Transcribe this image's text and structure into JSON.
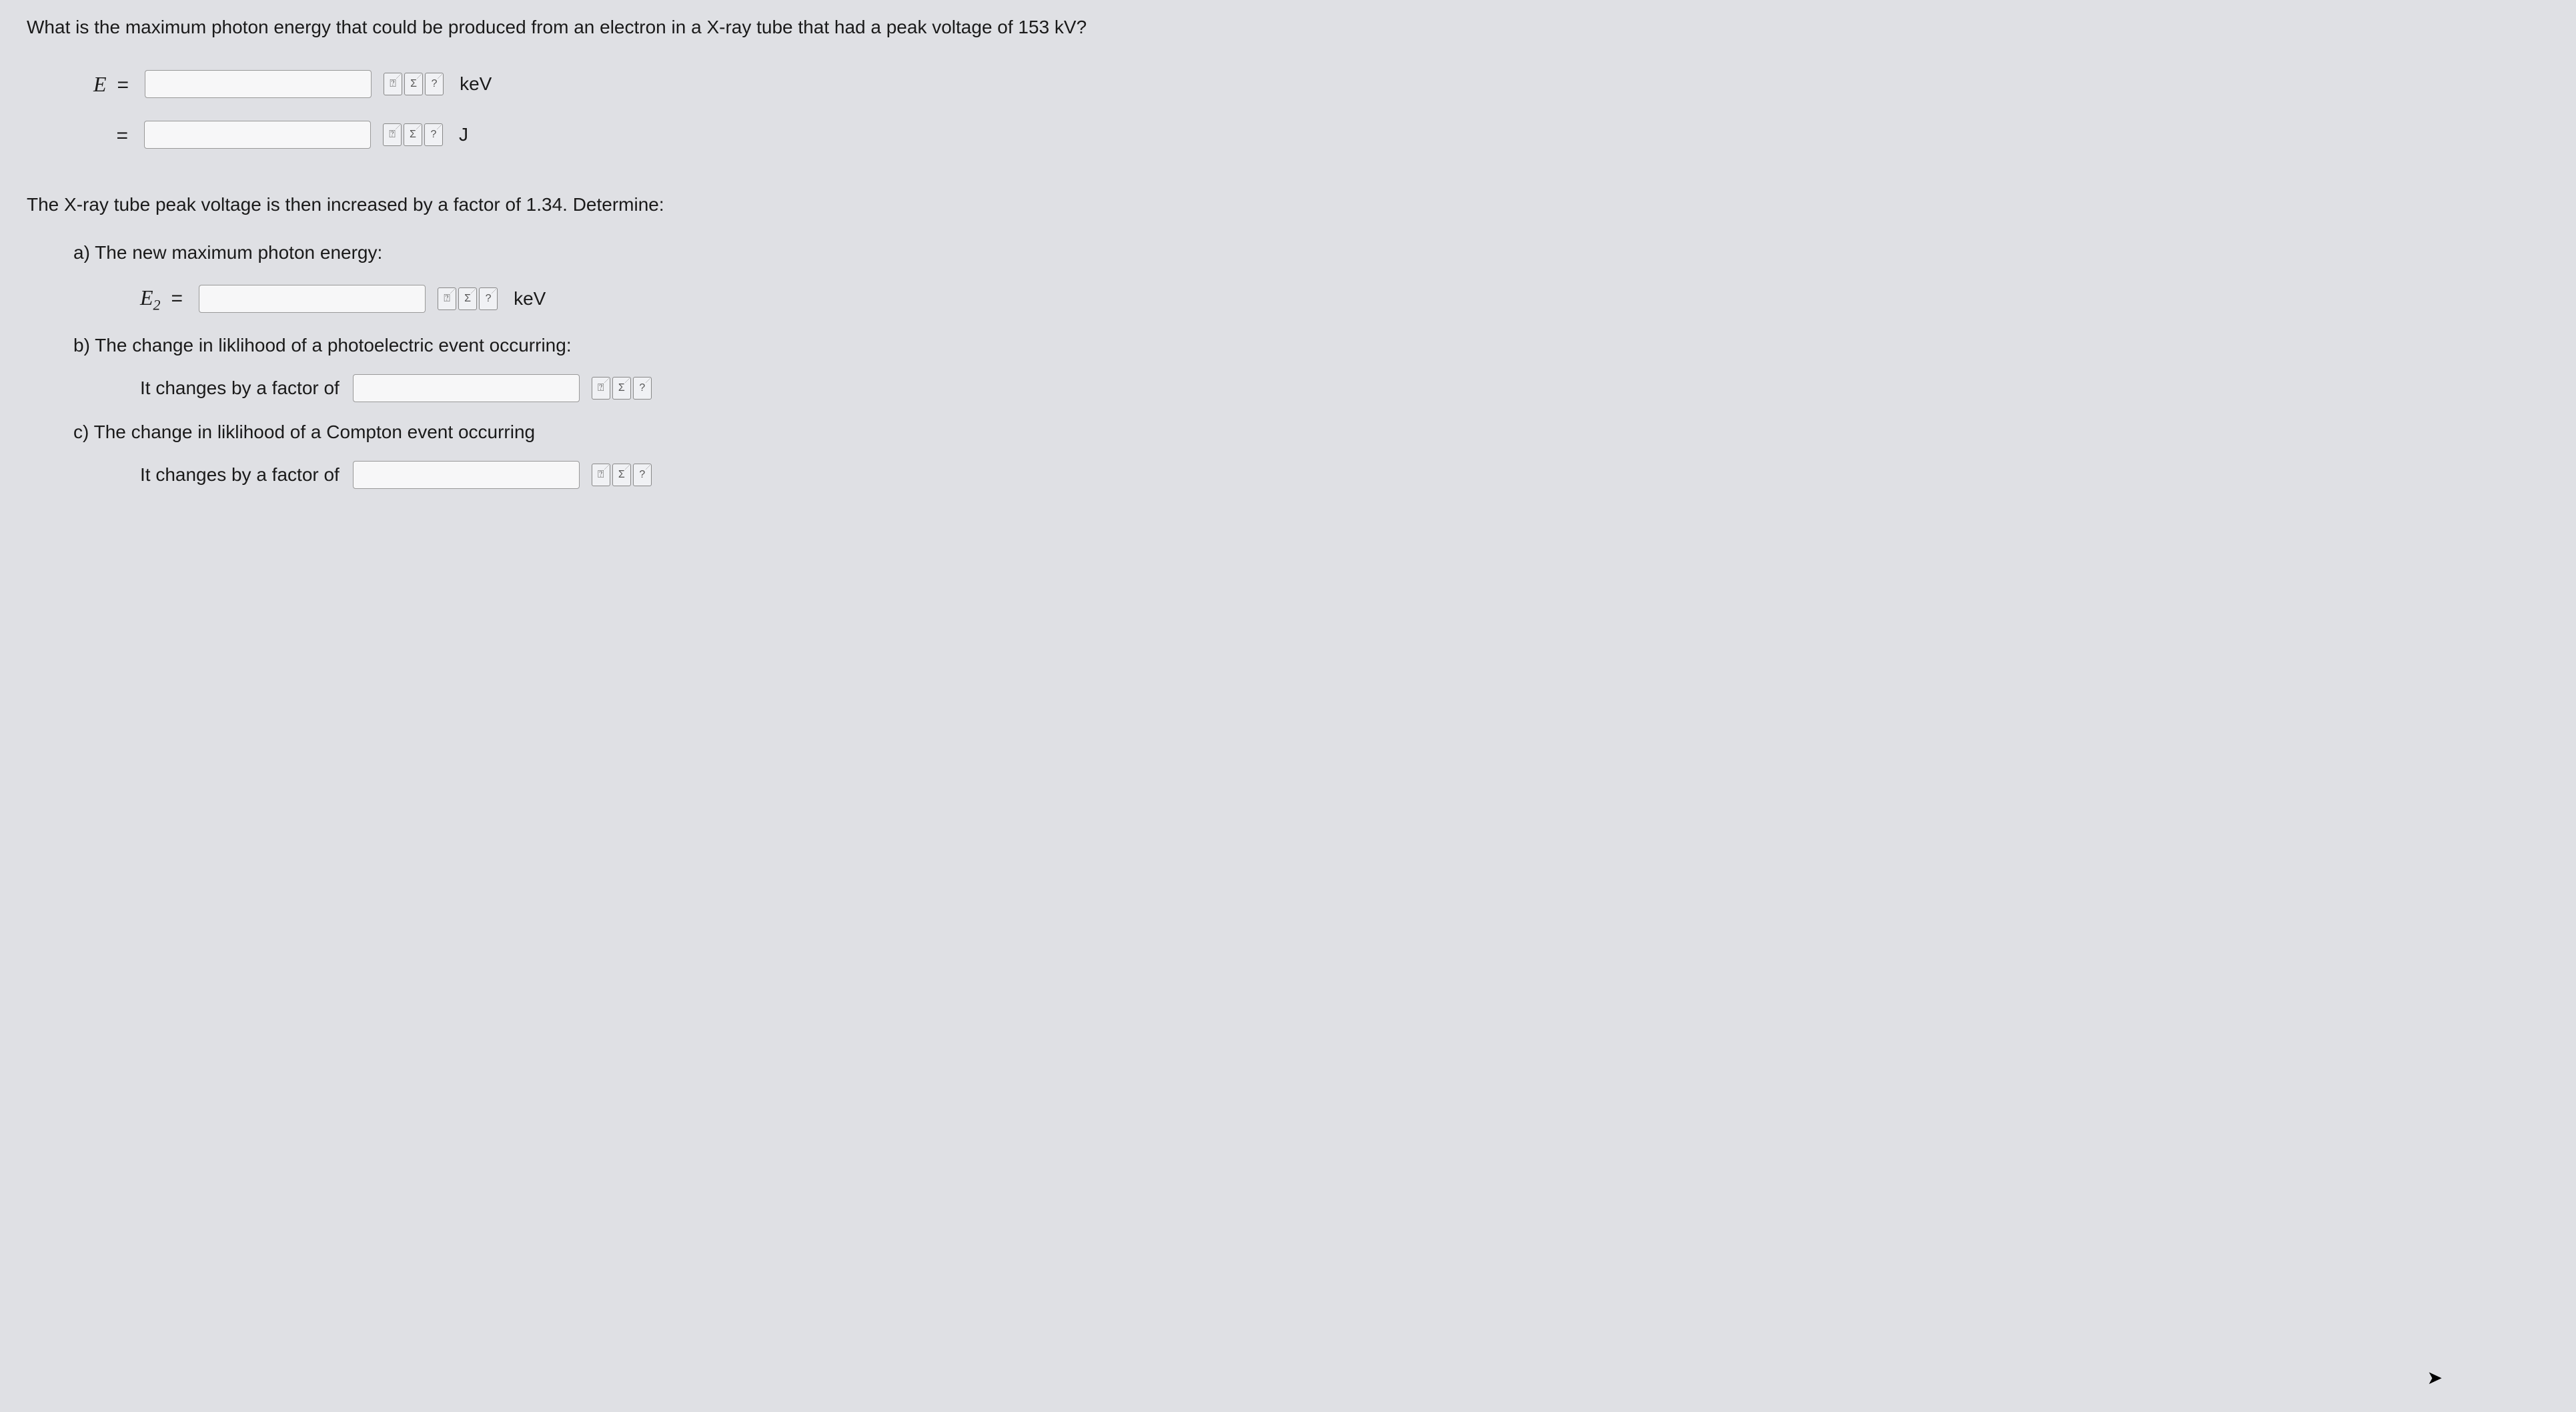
{
  "question": {
    "main_text": "What is the maximum photon energy that could be produced from an electron in a X-ray tube that had a peak voltage of 153 kV?",
    "var_E": "E",
    "equals": "=",
    "unit_keV": "keV",
    "unit_J": "J"
  },
  "part2": {
    "intro": "The X-ray tube peak voltage is then increased by a factor of 1.34. Determine:",
    "a": {
      "label": "a) The new maximum photon energy:",
      "var": "E",
      "sub": "2",
      "unit": "keV"
    },
    "b": {
      "label": "b) The change in liklihood of a photoelectric event occurring:",
      "factor_text": "It changes by a factor of"
    },
    "c": {
      "label": "c) The change in liklihood of a Compton event occurring",
      "factor_text": "It changes by a factor of"
    }
  },
  "icons": {
    "preview": "⍰",
    "sigma": "Σ",
    "help": "?"
  },
  "colors": {
    "background": "#dfe0e4",
    "text": "#1a1a1a",
    "input_bg": "#f7f7f8",
    "input_border": "#999999",
    "icon_bg": "#f0f1f4",
    "icon_border": "#888888"
  }
}
